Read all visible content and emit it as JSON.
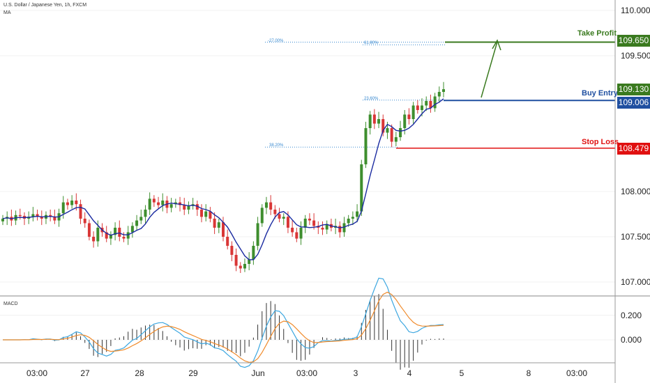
{
  "legend": {
    "symbol": "U.S. Dollar / Japanese Yen, 1h, FXCM",
    "ma": "MA",
    "macd": "MACD"
  },
  "annotations": {
    "take_profit": {
      "label": "Take Profit",
      "price": "109.650",
      "color": "#3a7a1f"
    },
    "buy_entry": {
      "label": "Buy Entry",
      "price": "109.006",
      "color": "#1f4fa0"
    },
    "stop_loss": {
      "label": "Stop Loss",
      "price": "108.479",
      "color": "#e01010"
    },
    "last_price": {
      "price": "109.130",
      "color": "#3a7a1f"
    },
    "fib_levels": [
      {
        "label": "-27.00%",
        "value": 109.65
      },
      {
        "label": "61.80%",
        "value": 109.62
      },
      {
        "label": "23.60%",
        "value": 109.01
      },
      {
        "label": "38.20%",
        "value": 108.49
      }
    ]
  },
  "chart_data": [
    {
      "type": "candlestick",
      "title": "U.S. Dollar / Japanese Yen, 1h, FXCM",
      "y_ticks": [
        "110.000",
        "109.500",
        "108.000",
        "107.500",
        "107.000"
      ],
      "y_tick_values": [
        110.0,
        109.5,
        108.0,
        107.5,
        107.0
      ],
      "ylim": [
        106.9,
        110.1
      ],
      "x_ticks": [
        "03:00",
        "27",
        "28",
        "29",
        "Jun",
        "03:00",
        "3",
        "4",
        "5",
        "8",
        "03:00"
      ],
      "colors": {
        "up": "#3e8e2e",
        "down": "#d93636",
        "ma": "#1a2aa0"
      },
      "close_path": [
        107.7,
        107.72,
        107.68,
        107.74,
        107.73,
        107.7,
        107.72,
        107.75,
        107.72,
        107.7,
        107.74,
        107.72,
        107.68,
        107.76,
        107.88,
        107.85,
        107.9,
        107.86,
        107.7,
        107.65,
        107.5,
        107.45,
        107.6,
        107.55,
        107.48,
        107.52,
        107.6,
        107.5,
        107.48,
        107.55,
        107.62,
        107.68,
        107.72,
        107.8,
        107.92,
        107.88,
        107.85,
        107.9,
        107.82,
        107.86,
        107.88,
        107.85,
        107.8,
        107.84,
        107.86,
        107.8,
        107.72,
        107.78,
        107.7,
        107.6,
        107.66,
        107.5,
        107.4,
        107.3,
        107.18,
        107.15,
        107.2,
        107.25,
        107.4,
        107.65,
        107.82,
        107.88,
        107.8,
        107.75,
        107.7,
        107.72,
        107.6,
        107.55,
        107.48,
        107.6,
        107.7,
        107.68,
        107.62,
        107.6,
        107.58,
        107.64,
        107.6,
        107.62,
        107.55,
        107.65,
        107.7,
        107.72,
        107.78,
        108.3,
        108.7,
        108.85,
        108.75,
        108.8,
        108.65,
        108.7,
        108.55,
        108.6,
        108.7,
        108.85,
        108.8,
        108.95,
        108.9,
        108.95,
        109.0,
        108.92,
        109.05,
        109.1,
        109.13
      ]
    },
    {
      "type": "line",
      "title": "MACD",
      "y_ticks": [
        "0.200",
        "0.000"
      ],
      "y_tick_values": [
        0.2,
        0.0
      ],
      "ylim": [
        -0.17,
        0.34
      ]
    }
  ]
}
